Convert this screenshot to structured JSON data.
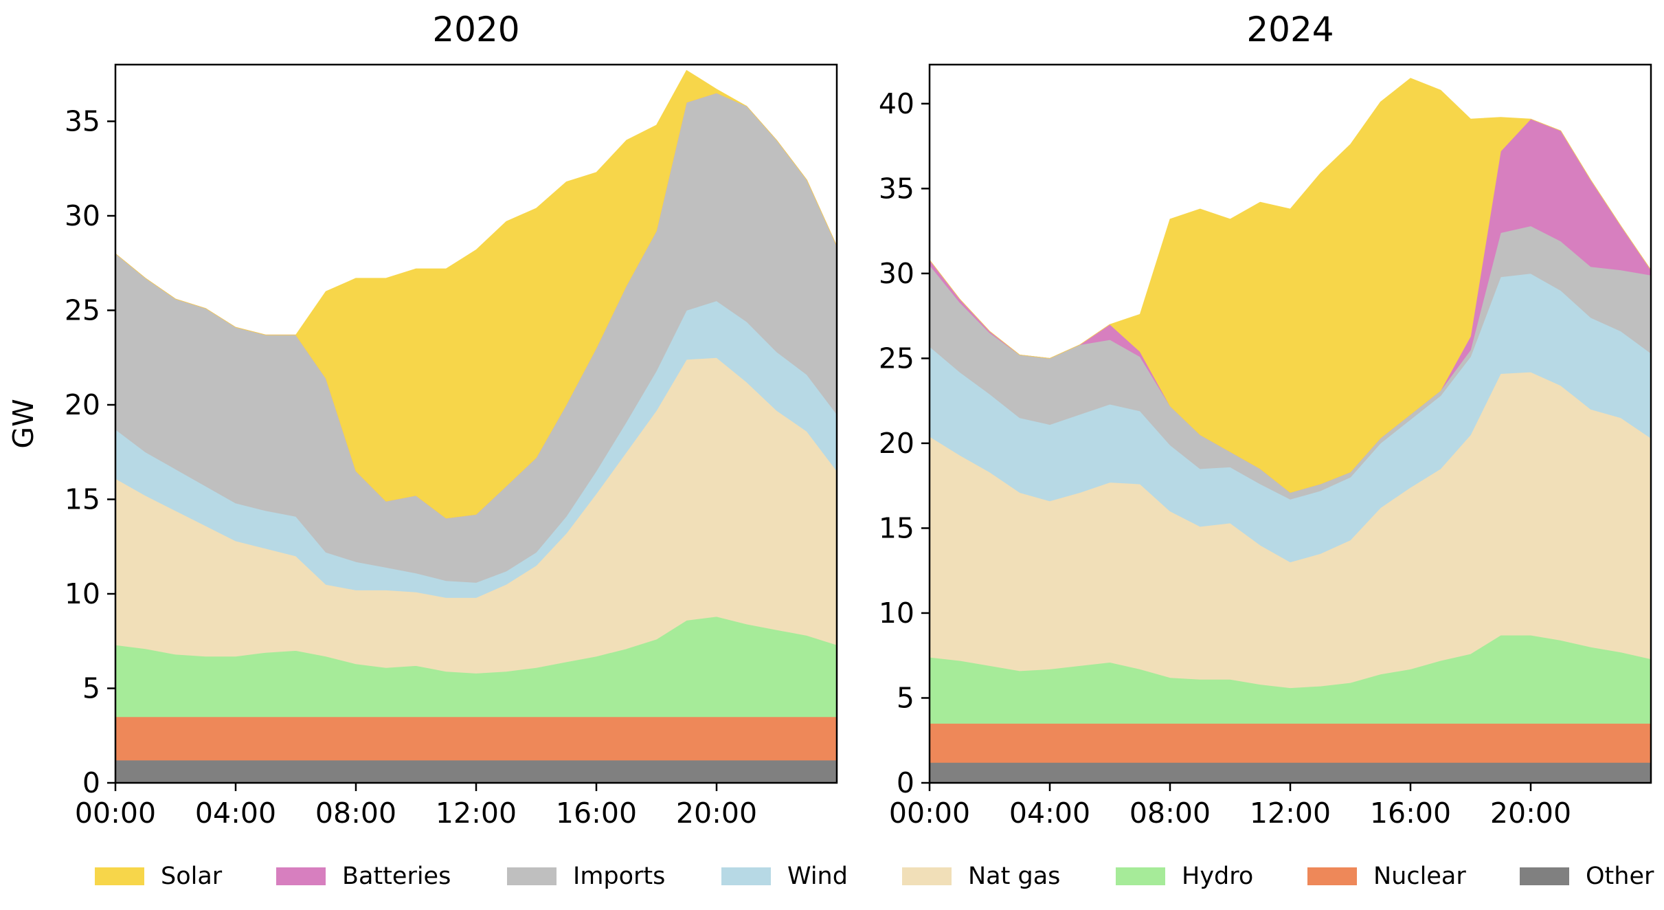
{
  "chart_data": [
    {
      "type": "area",
      "stacked": true,
      "title": "2020",
      "xlabel": "",
      "ylabel": "GW",
      "x": [
        "00:00",
        "01:00",
        "02:00",
        "03:00",
        "04:00",
        "05:00",
        "06:00",
        "07:00",
        "08:00",
        "09:00",
        "10:00",
        "11:00",
        "12:00",
        "13:00",
        "14:00",
        "15:00",
        "16:00",
        "17:00",
        "18:00",
        "19:00",
        "20:00",
        "21:00",
        "22:00",
        "23:00",
        "24:00"
      ],
      "xticks": [
        "00:00",
        "04:00",
        "08:00",
        "12:00",
        "16:00",
        "20:00"
      ],
      "xlim_hours": [
        0,
        24
      ],
      "ylim": [
        0,
        38
      ],
      "yticks": [
        0,
        5,
        10,
        15,
        20,
        25,
        30,
        35
      ],
      "series": [
        {
          "name": "Other",
          "color": "#808080",
          "values": [
            1.2,
            1.2,
            1.2,
            1.2,
            1.2,
            1.2,
            1.2,
            1.2,
            1.2,
            1.2,
            1.2,
            1.2,
            1.2,
            1.2,
            1.2,
            1.2,
            1.2,
            1.2,
            1.2,
            1.2,
            1.2,
            1.2,
            1.2,
            1.2,
            1.2
          ]
        },
        {
          "name": "Nuclear",
          "color": "#ee8859",
          "values": [
            2.3,
            2.3,
            2.3,
            2.3,
            2.3,
            2.3,
            2.3,
            2.3,
            2.3,
            2.3,
            2.3,
            2.3,
            2.3,
            2.3,
            2.3,
            2.3,
            2.3,
            2.3,
            2.3,
            2.3,
            2.3,
            2.3,
            2.3,
            2.3,
            2.3
          ]
        },
        {
          "name": "Hydro",
          "color": "#a6eb99",
          "values": [
            3.8,
            3.6,
            3.3,
            3.2,
            3.2,
            3.4,
            3.5,
            3.2,
            2.8,
            2.6,
            2.7,
            2.4,
            2.3,
            2.4,
            2.6,
            2.9,
            3.2,
            3.6,
            4.1,
            5.1,
            5.3,
            4.9,
            4.6,
            4.3,
            3.8
          ]
        },
        {
          "name": "Nat gas",
          "color": "#f1dfb8",
          "values": [
            8.8,
            8.1,
            7.6,
            6.9,
            6.1,
            5.5,
            5.0,
            3.8,
            3.9,
            4.1,
            3.9,
            3.9,
            4.0,
            4.6,
            5.4,
            6.8,
            8.6,
            10.4,
            12.1,
            13.8,
            13.7,
            12.8,
            11.6,
            10.8,
            9.2
          ]
        },
        {
          "name": "Wind",
          "color": "#b7d9e5",
          "values": [
            2.6,
            2.3,
            2.2,
            2.1,
            2.0,
            2.0,
            2.1,
            1.7,
            1.5,
            1.2,
            1.0,
            0.9,
            0.8,
            0.7,
            0.7,
            0.9,
            1.2,
            1.6,
            2.1,
            2.6,
            3.0,
            3.2,
            3.1,
            3.0,
            3.0
          ]
        },
        {
          "name": "Imports",
          "color": "#bfbfbf",
          "values": [
            9.3,
            9.2,
            9.0,
            9.4,
            9.3,
            9.3,
            9.6,
            9.2,
            4.8,
            3.5,
            4.1,
            3.3,
            3.6,
            4.5,
            5.0,
            5.9,
            6.5,
            7.2,
            7.4,
            11.0,
            11.0,
            11.4,
            11.2,
            10.3,
            8.9
          ]
        },
        {
          "name": "Batteries",
          "color": "#d77fbf",
          "values": [
            0,
            0,
            0,
            0,
            0,
            0,
            0,
            0,
            0,
            0,
            0,
            0,
            0,
            0,
            0,
            0,
            0,
            0,
            0,
            0,
            0,
            0,
            0,
            0,
            0
          ]
        },
        {
          "name": "Solar",
          "color": "#f7d64a",
          "values": [
            0,
            0,
            0,
            0,
            0,
            0,
            0,
            4.6,
            10.2,
            11.8,
            12.0,
            13.2,
            14.0,
            14.0,
            13.2,
            11.8,
            9.3,
            7.7,
            5.6,
            1.7,
            0.2,
            0,
            0,
            0,
            0
          ]
        }
      ]
    },
    {
      "type": "area",
      "stacked": true,
      "title": "2024",
      "xlabel": "",
      "ylabel": "",
      "x": [
        "00:00",
        "01:00",
        "02:00",
        "03:00",
        "04:00",
        "05:00",
        "06:00",
        "07:00",
        "08:00",
        "09:00",
        "10:00",
        "11:00",
        "12:00",
        "13:00",
        "14:00",
        "15:00",
        "16:00",
        "17:00",
        "18:00",
        "19:00",
        "20:00",
        "21:00",
        "22:00",
        "23:00",
        "24:00"
      ],
      "xticks": [
        "00:00",
        "04:00",
        "08:00",
        "12:00",
        "16:00",
        "20:00"
      ],
      "xlim_hours": [
        0,
        24
      ],
      "ylim": [
        0,
        42.3
      ],
      "yticks": [
        0,
        5,
        10,
        15,
        20,
        25,
        30,
        35,
        40
      ],
      "series": [
        {
          "name": "Other",
          "color": "#808080",
          "values": [
            1.2,
            1.2,
            1.2,
            1.2,
            1.2,
            1.2,
            1.2,
            1.2,
            1.2,
            1.2,
            1.2,
            1.2,
            1.2,
            1.2,
            1.2,
            1.2,
            1.2,
            1.2,
            1.2,
            1.2,
            1.2,
            1.2,
            1.2,
            1.2,
            1.2
          ]
        },
        {
          "name": "Nuclear",
          "color": "#ee8859",
          "values": [
            2.3,
            2.3,
            2.3,
            2.3,
            2.3,
            2.3,
            2.3,
            2.3,
            2.3,
            2.3,
            2.3,
            2.3,
            2.3,
            2.3,
            2.3,
            2.3,
            2.3,
            2.3,
            2.3,
            2.3,
            2.3,
            2.3,
            2.3,
            2.3,
            2.3
          ]
        },
        {
          "name": "Hydro",
          "color": "#a6eb99",
          "values": [
            3.9,
            3.7,
            3.4,
            3.1,
            3.2,
            3.4,
            3.6,
            3.2,
            2.7,
            2.6,
            2.6,
            2.3,
            2.1,
            2.2,
            2.4,
            2.9,
            3.2,
            3.7,
            4.1,
            5.2,
            5.2,
            4.9,
            4.5,
            4.2,
            3.8
          ]
        },
        {
          "name": "Nat gas",
          "color": "#f1dfb8",
          "values": [
            13.0,
            12.1,
            11.4,
            10.5,
            9.9,
            10.2,
            10.6,
            10.9,
            9.8,
            9.0,
            9.2,
            8.2,
            7.4,
            7.8,
            8.4,
            9.8,
            10.7,
            11.3,
            12.9,
            15.4,
            15.5,
            15.0,
            14.0,
            13.8,
            13.0
          ]
        },
        {
          "name": "Wind",
          "color": "#b7d9e5",
          "values": [
            5.3,
            4.9,
            4.6,
            4.4,
            4.5,
            4.6,
            4.6,
            4.3,
            3.9,
            3.4,
            3.3,
            3.6,
            3.7,
            3.7,
            3.7,
            3.8,
            4.0,
            4.3,
            4.6,
            5.7,
            5.8,
            5.6,
            5.4,
            5.1,
            5.0
          ]
        },
        {
          "name": "Imports",
          "color": "#bfbfbf",
          "values": [
            4.8,
            4.1,
            3.6,
            3.7,
            3.9,
            4.1,
            3.8,
            3.2,
            2.3,
            2.0,
            0.9,
            0.9,
            0.4,
            0.4,
            0.3,
            0.3,
            0.3,
            0.3,
            0.4,
            2.6,
            2.8,
            2.9,
            3.0,
            3.6,
            4.6
          ]
        },
        {
          "name": "Batteries",
          "color": "#d77fbf",
          "values": [
            0.3,
            0.2,
            0.1,
            0,
            0,
            0,
            0.9,
            0.3,
            0,
            0,
            0,
            0,
            0,
            0,
            0,
            0,
            0,
            0,
            0.8,
            4.8,
            6.3,
            6.5,
            5.1,
            2.6,
            0.3
          ]
        },
        {
          "name": "Solar",
          "color": "#f7d64a",
          "values": [
            0,
            0,
            0,
            0,
            0,
            0,
            0,
            2.2,
            11.0,
            13.3,
            13.7,
            15.7,
            16.7,
            18.3,
            19.3,
            19.8,
            19.8,
            17.7,
            12.8,
            2.0,
            0,
            0,
            0,
            0,
            0
          ]
        }
      ]
    }
  ],
  "legend": {
    "placement": "bottom",
    "items": [
      {
        "label": "Solar",
        "color": "#f7d64a"
      },
      {
        "label": "Batteries",
        "color": "#d77fbf"
      },
      {
        "label": "Imports",
        "color": "#bfbfbf"
      },
      {
        "label": "Wind",
        "color": "#b7d9e5"
      },
      {
        "label": "Nat gas",
        "color": "#f1dfb8"
      },
      {
        "label": "Hydro",
        "color": "#a6eb99"
      },
      {
        "label": "Nuclear",
        "color": "#ee8859"
      },
      {
        "label": "Other",
        "color": "#808080"
      }
    ]
  }
}
